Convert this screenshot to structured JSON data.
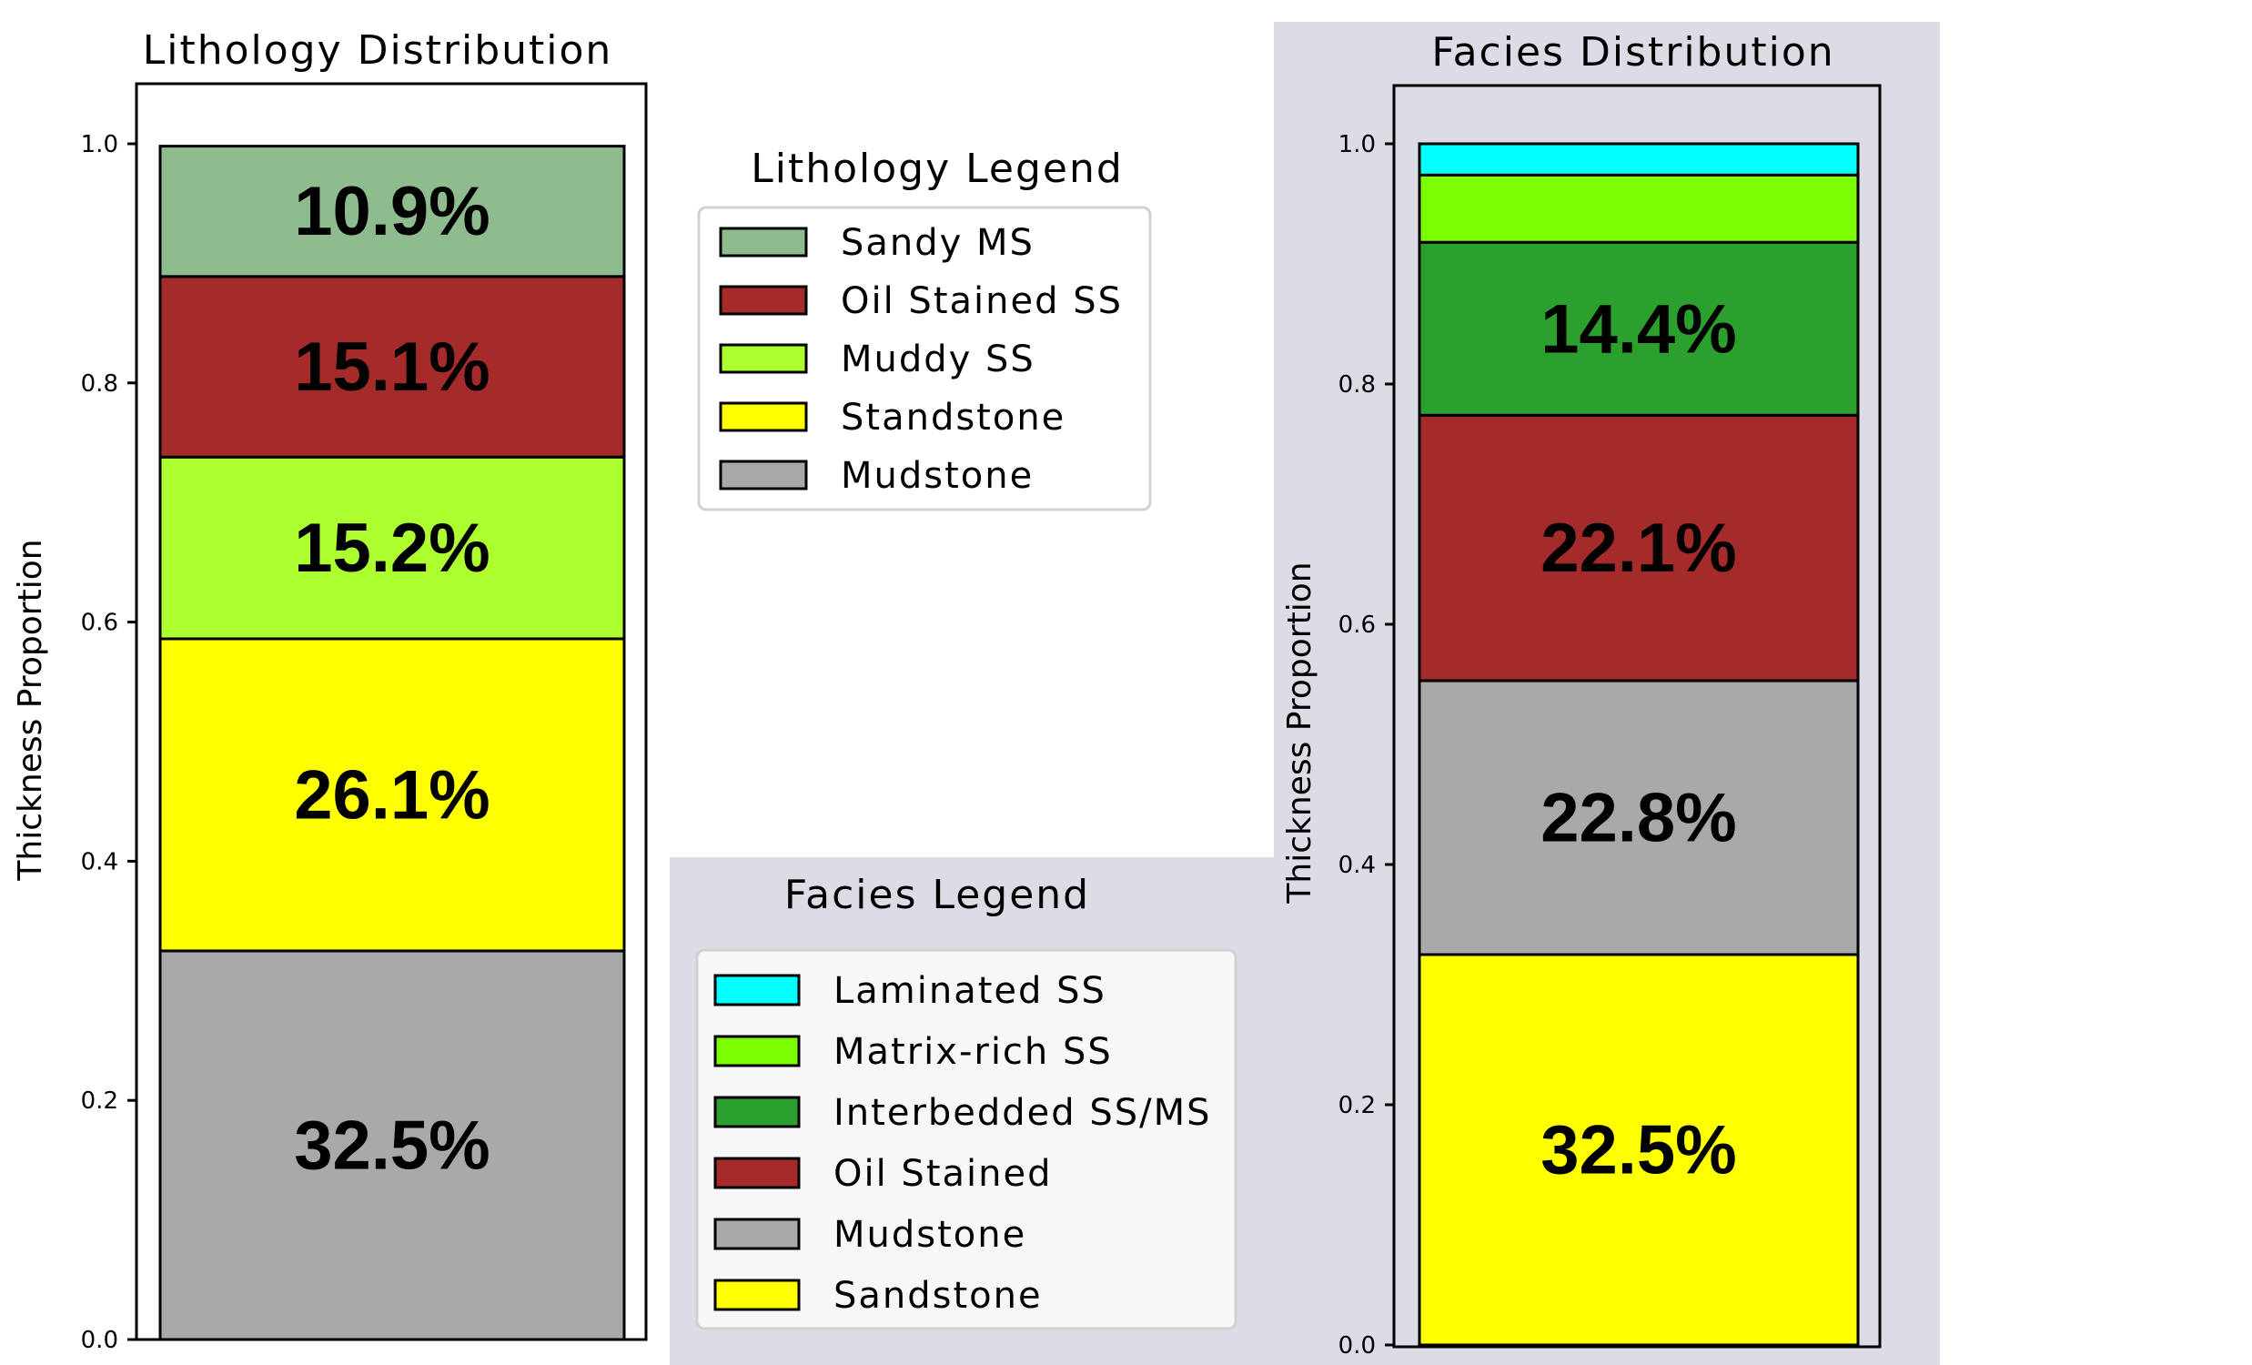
{
  "chart_data": [
    {
      "type": "bar",
      "stacked": true,
      "title": "Lithology Distribution",
      "ylabel": "Thickness Proportion",
      "ylim": [
        0,
        1.0
      ],
      "yticks": [
        "0.0",
        "0.2",
        "0.4",
        "0.6",
        "0.8",
        "1.0"
      ],
      "grid": false,
      "series": [
        {
          "name": "Mudstone",
          "value": 0.325,
          "label": "32.5%",
          "color": "#a9a9a9"
        },
        {
          "name": "Standstone",
          "value": 0.261,
          "label": "26.1%",
          "color": "#ffff00"
        },
        {
          "name": "Muddy SS",
          "value": 0.152,
          "label": "15.2%",
          "color": "#adff2f"
        },
        {
          "name": "Oil Stained SS",
          "value": 0.151,
          "label": "15.1%",
          "color": "#a52a2a"
        },
        {
          "name": "Sandy MS",
          "value": 0.109,
          "label": "10.9%",
          "color": "#8fbc8f"
        }
      ],
      "legend": {
        "title": "Lithology Legend",
        "entries": [
          "Sandy MS",
          "Oil Stained SS",
          "Muddy SS",
          "Standstone",
          "Mudstone"
        ]
      }
    },
    {
      "type": "bar",
      "stacked": true,
      "title": "Facies Distribution",
      "ylabel": "Thickness Proportion",
      "ylim": [
        0,
        1.0
      ],
      "yticks": [
        "0.0",
        "0.2",
        "0.4",
        "0.6",
        "0.8",
        "1.0"
      ],
      "grid": false,
      "series": [
        {
          "name": "Sandstone",
          "value": 0.325,
          "label": "32.5%",
          "color": "#ffff00"
        },
        {
          "name": "Mudstone",
          "value": 0.228,
          "label": "22.8%",
          "color": "#a9a9a9"
        },
        {
          "name": "Oil Stained",
          "value": 0.221,
          "label": "22.1%",
          "color": "#a52a2a"
        },
        {
          "name": "Interbedded SS/MS",
          "value": 0.144,
          "label": "14.4%",
          "color": "#2ca02c"
        },
        {
          "name": "Matrix-rich SS",
          "value": 0.056,
          "label": "",
          "color": "#7cfc00"
        },
        {
          "name": "Laminated SS",
          "value": 0.026,
          "label": "",
          "color": "#00ffff"
        }
      ],
      "legend": {
        "title": "Facies Legend",
        "entries": [
          "Laminated SS",
          "Matrix-rich SS",
          "Interbedded SS/MS",
          "Oil Stained",
          "Mudstone",
          "Sandstone"
        ]
      }
    }
  ],
  "colors": {
    "panel_bg": "#dcdce6",
    "legend_bg": "#f7f7f8"
  }
}
